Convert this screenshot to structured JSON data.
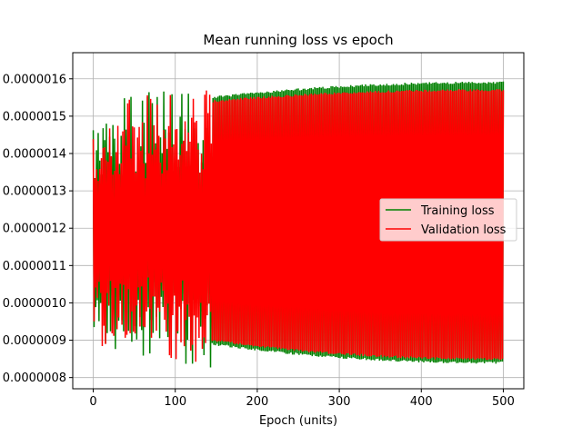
{
  "chart_data": {
    "type": "line",
    "title": "Mean running loss vs epoch",
    "xlabel": "Epoch (units)",
    "ylabel": "",
    "xlim": [
      -25,
      525
    ],
    "ylim": [
      7.7e-07,
      1.67e-06
    ],
    "xticks": [
      0,
      100,
      200,
      300,
      400,
      500
    ],
    "xtick_labels": [
      "0",
      "100",
      "200",
      "300",
      "400",
      "500"
    ],
    "yticks": [
      8e-07,
      9e-07,
      1e-06,
      1.1e-06,
      1.2e-06,
      1.3e-06,
      1.4e-06,
      1.5e-06,
      1.6e-06
    ],
    "ytick_labels": [
      "0.0000008",
      "0.0000009",
      "0.0000010",
      "0.0000011",
      "0.0000012",
      "0.0000013",
      "0.0000014",
      "0.0000015",
      "0.0000016"
    ],
    "grid": true,
    "legend_position": "center-right",
    "series": [
      {
        "name": "Training loss",
        "color": "#008000",
        "x_range": [
          0,
          500
        ],
        "early_phase_end": 145,
        "early_peak": 1.6e-06,
        "early_trough": 8.2e-07,
        "late_upper_start": 1.55e-06,
        "late_upper_end": 1.59e-06,
        "late_lower_start": 8.9e-07,
        "late_lower_end": 8.4e-07
      },
      {
        "name": "Validation loss",
        "color": "#ff0000",
        "x_range": [
          0,
          500
        ],
        "early_phase_end": 145,
        "early_peak": 1.59e-06,
        "early_trough": 8.3e-07,
        "late_upper_start": 1.54e-06,
        "late_upper_end": 1.57e-06,
        "late_lower_start": 9e-07,
        "late_lower_end": 8.5e-07
      }
    ]
  }
}
